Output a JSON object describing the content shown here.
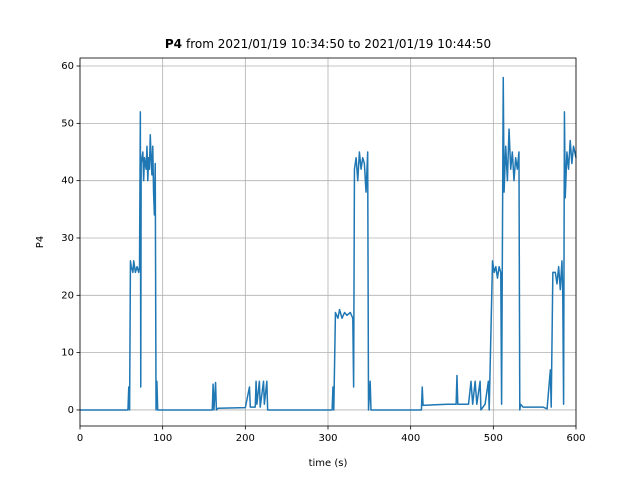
{
  "chart_data": {
    "type": "line",
    "title_prefix": "P4",
    "title": "from 2021/01/19 10:34:50 to 2021/01/19 10:44:50",
    "xlabel": "time (s)",
    "ylabel": "P4",
    "xlim": [
      0,
      600
    ],
    "ylim": [
      -2.8,
      61.4
    ],
    "xticks": [
      0,
      100,
      200,
      300,
      400,
      500,
      600
    ],
    "yticks": [
      0,
      10,
      20,
      30,
      40,
      50,
      60
    ],
    "grid": true,
    "x": [
      0,
      58,
      59,
      60,
      61,
      62,
      64,
      65,
      67,
      69,
      71,
      72,
      73,
      73.5,
      74,
      76,
      77,
      78,
      80,
      81,
      82,
      83,
      84,
      85,
      86,
      87,
      88,
      89,
      90,
      91,
      92,
      93,
      94,
      160,
      161,
      162,
      164,
      165,
      167,
      200,
      205,
      206,
      212,
      213,
      214,
      217,
      218,
      222,
      223,
      226,
      227,
      305,
      306,
      307,
      309,
      312,
      314,
      317,
      320,
      323,
      327,
      330,
      331,
      332,
      334,
      336,
      338,
      340,
      342,
      344,
      346,
      348,
      349,
      351,
      352,
      413,
      414,
      415,
      430,
      445,
      455,
      456,
      457,
      470,
      473,
      475,
      478,
      480,
      484,
      485,
      490,
      494,
      495,
      499,
      501,
      503,
      505,
      507,
      509,
      510,
      512,
      513,
      515,
      517,
      519,
      521,
      523,
      525,
      527,
      529,
      531,
      532,
      533,
      536,
      560,
      565,
      569,
      570,
      572,
      575,
      577,
      579,
      581,
      583,
      584,
      585,
      586,
      587,
      589,
      591,
      593,
      595,
      597,
      600
    ],
    "series": [
      {
        "name": "P4",
        "color": "#1f77b4",
        "values": [
          0,
          0,
          4,
          0,
          26,
          25,
          24,
          26,
          24,
          25,
          24,
          25,
          52,
          4,
          43,
          45,
          40,
          44,
          42,
          46,
          40,
          44,
          42,
          48,
          44,
          41,
          46,
          38,
          34,
          43,
          0,
          5,
          0,
          0,
          4.5,
          0,
          4.8,
          0,
          0.3,
          0.4,
          4,
          0.5,
          0.5,
          5,
          1,
          5,
          0.5,
          5,
          1,
          5,
          0,
          0,
          4,
          0,
          17,
          16,
          17.5,
          16,
          17,
          16.5,
          17,
          16,
          4,
          42,
          44,
          40,
          45,
          42,
          44,
          43,
          38,
          45,
          0,
          5,
          0,
          0,
          4,
          0.8,
          0.9,
          1,
          1,
          6,
          1,
          1,
          5,
          1,
          5,
          1,
          5,
          0,
          1,
          5,
          0,
          26,
          24,
          25,
          23,
          25,
          24,
          1,
          58,
          38,
          46,
          40,
          49,
          42,
          45,
          40,
          44,
          42,
          45,
          0,
          1,
          0.5,
          0.5,
          0.2,
          7,
          0.5,
          24,
          24,
          22,
          25,
          21,
          26,
          20,
          1,
          52,
          37,
          45,
          42,
          47,
          43,
          46,
          44
        ]
      }
    ]
  }
}
